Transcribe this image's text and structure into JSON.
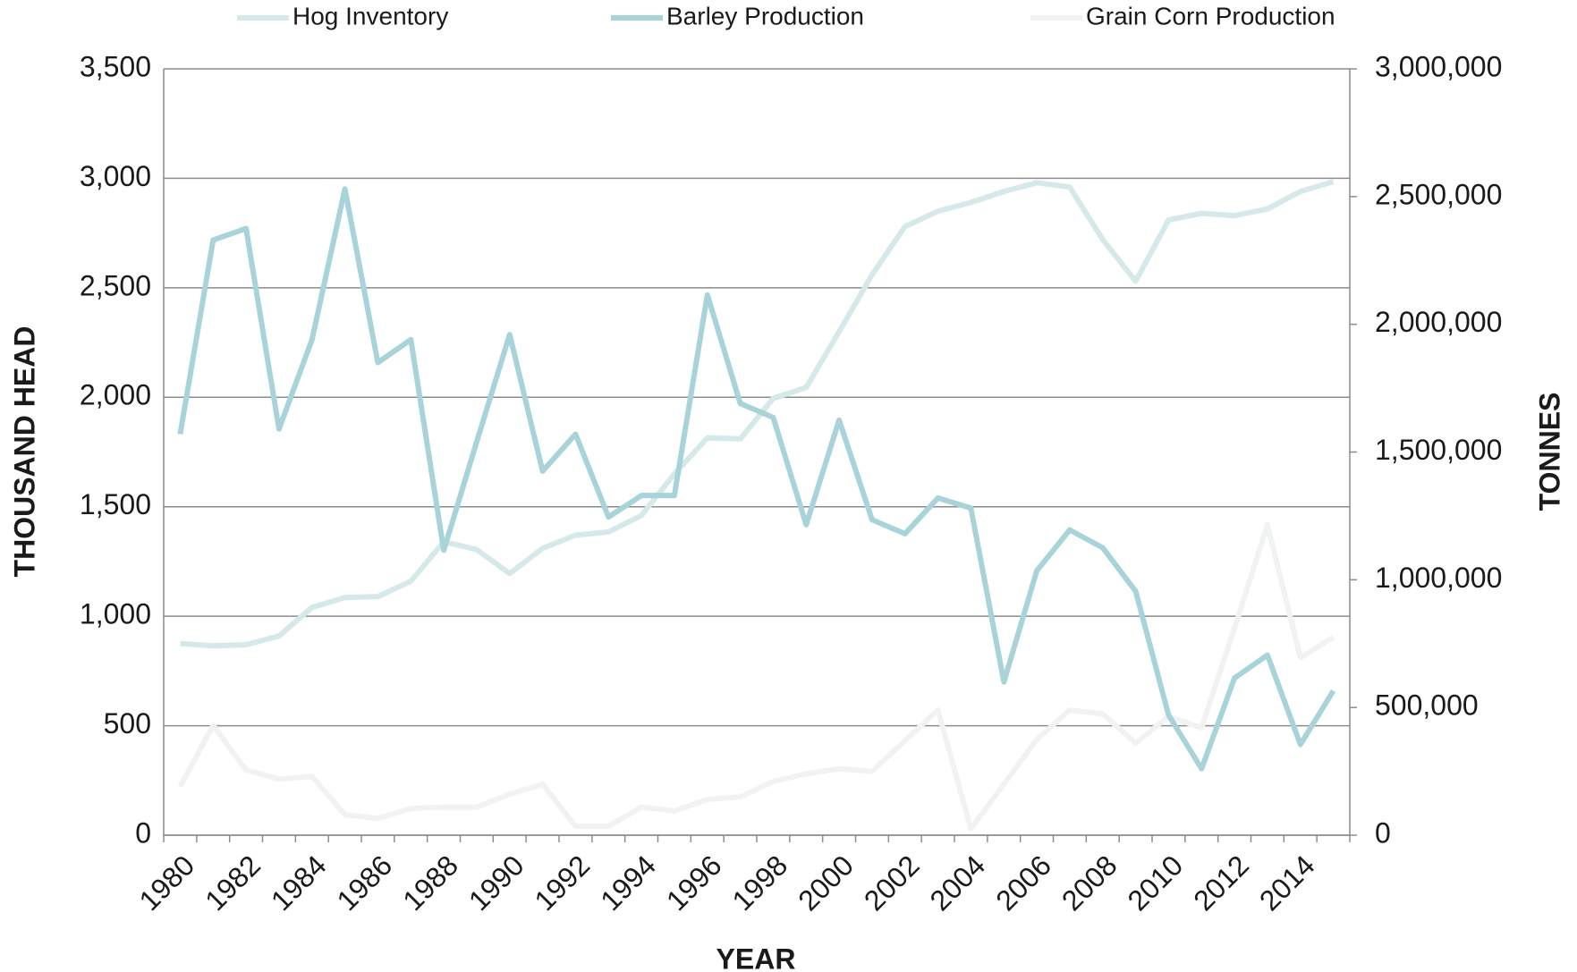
{
  "chart_data": {
    "type": "line",
    "x_label": "YEAR",
    "y_label": "THOUSAND  HEAD",
    "y2_label": "TONNES",
    "categories": [
      "1980",
      null,
      "1982",
      null,
      "1984",
      null,
      "1986",
      null,
      "1988",
      null,
      "1990",
      null,
      "1992",
      null,
      "1994",
      null,
      "1996",
      null,
      "1998",
      null,
      "2000",
      null,
      "2002",
      null,
      "2004",
      null,
      "2006",
      null,
      "2008",
      null,
      "2010",
      null,
      "2012",
      null,
      "2014",
      null
    ],
    "series": [
      {
        "name": "Hog Inventory",
        "color": "#d5e8ea",
        "values": [
          875,
          865,
          870,
          910,
          1040,
          1085,
          1090,
          1160,
          1340,
          1305,
          1195,
          1310,
          1370,
          1385,
          1460,
          1650,
          1815,
          1810,
          1995,
          2045,
          2300,
          2560,
          2780,
          2850,
          2890,
          2940,
          2980,
          2960,
          2720,
          2530,
          2810,
          2840,
          2830,
          2860,
          2940,
          2985
        ]
      },
      {
        "name": "Barley Production",
        "color": "#a8d3d8",
        "axis": "y2",
        "values": [
          1570000,
          2330000,
          2375000,
          1590000,
          1940000,
          2530000,
          1850000,
          1940000,
          1115000,
          1540000,
          1960000,
          1425000,
          1570000,
          1245000,
          1330000,
          1330000,
          2115000,
          1690000,
          1635000,
          1215000,
          1625000,
          1235000,
          1180000,
          1320000,
          1280000,
          600000,
          1035000,
          1195000,
          1125000,
          955000,
          470000,
          260000,
          615000,
          705000,
          355000,
          565000
        ]
      },
      {
        "name": "Grain Corn Production",
        "color": "#f1f3f3",
        "axis": "y2",
        "values": [
          190000,
          430000,
          255000,
          220000,
          230000,
          80000,
          65000,
          105000,
          110000,
          110000,
          160000,
          200000,
          35000,
          35000,
          110000,
          95000,
          140000,
          150000,
          210000,
          240000,
          260000,
          250000,
          370000,
          490000,
          25000,
          200000,
          375000,
          490000,
          475000,
          360000,
          465000,
          420000,
          810000,
          1215000,
          695000,
          775000
        ]
      }
    ],
    "ylim": [
      0,
      3500
    ],
    "yticks": [
      0,
      500,
      {
        "value": 1000,
        "label": "1,000"
      },
      {
        "value": 1500,
        "label": "1,500"
      },
      {
        "value": 2000,
        "label": "2,000"
      },
      {
        "value": 2500,
        "label": "2,500"
      },
      {
        "value": 3000,
        "label": "3,000"
      },
      {
        "value": 3500,
        "label": "3,500"
      }
    ],
    "y2lim": [
      0,
      3000000
    ],
    "y2ticks": [
      0,
      {
        "value": 500000,
        "label": "500,000"
      },
      {
        "value": 1000000,
        "label": "1,000,000"
      },
      {
        "value": 1500000,
        "label": "1,500,000"
      },
      {
        "value": 2000000,
        "label": "2,000,000"
      },
      {
        "value": 2500000,
        "label": "2,500,000"
      },
      {
        "value": 3000000,
        "label": "3,000,000"
      }
    ],
    "grid": true,
    "legend": "top"
  }
}
